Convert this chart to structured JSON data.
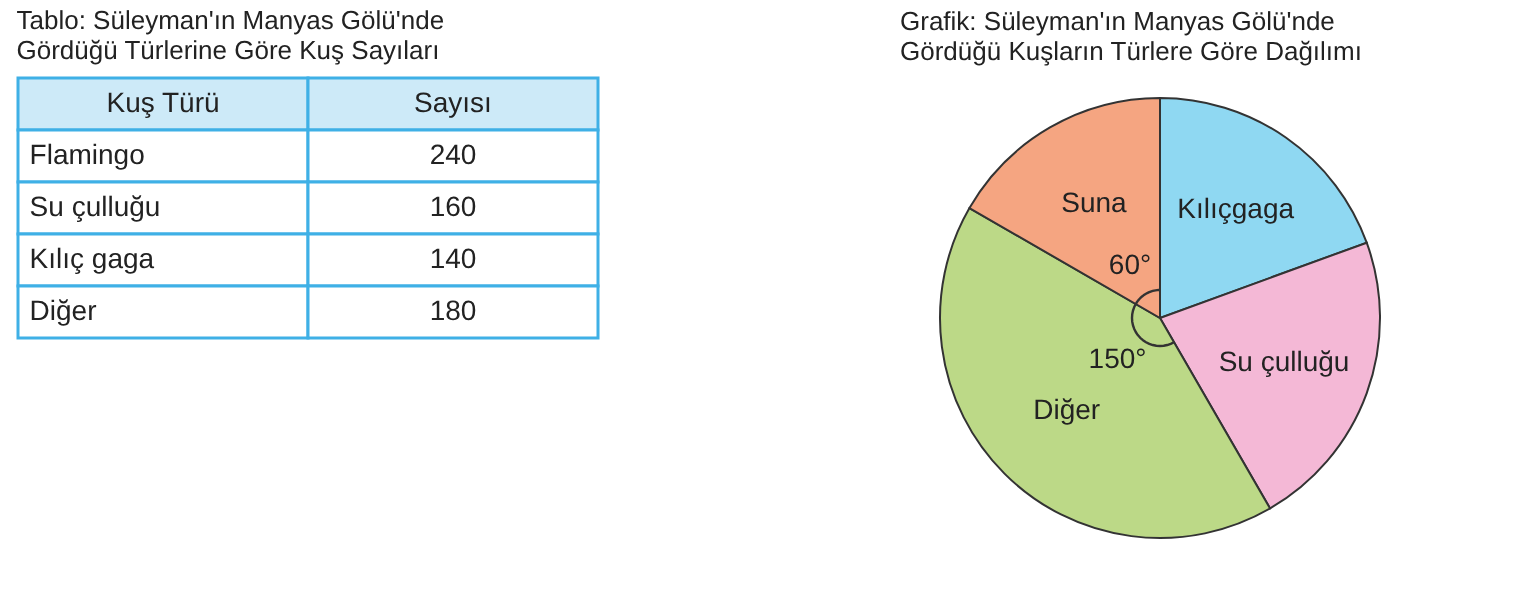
{
  "chart_data": [
    {
      "type": "other",
      "title": "Tablo: Süleyman'ın Manyas Gölü'nde Gördüğü Türlerine Göre Kuş Sayıları",
      "xlabel": "Kuş Türü",
      "ylabel": "Sayısı",
      "categories": [
        "Flamingo",
        "Su çulluğu",
        "Kılıç gaga",
        "Diğer"
      ],
      "values": [
        240,
        160,
        140,
        180
      ],
      "data_labels": true
    },
    {
      "type": "pie",
      "title": "Grafik: Süleyman'ın Manyas Gölü'nde Gördüğü Kuşların Türlere Göre Dağılımı",
      "categories": [
        "Kılıçgaga",
        "Su çulluğu",
        "Diğer",
        "Suna"
      ],
      "values": [
        19.44,
        22.22,
        41.67,
        16.67
      ],
      "colors": [
        "#8fd8f2",
        "#f4b8d6",
        "#bcd987",
        "#f5a581"
      ],
      "annotations": [
        {
          "text": "60°",
          "x": "Suna"
        },
        {
          "text": "150°",
          "x": "Diğer"
        }
      ]
    }
  ]
}
